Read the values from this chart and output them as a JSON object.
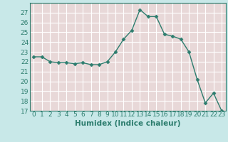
{
  "x": [
    0,
    1,
    2,
    3,
    4,
    5,
    6,
    7,
    8,
    9,
    10,
    11,
    12,
    13,
    14,
    15,
    16,
    17,
    18,
    19,
    20,
    21,
    22,
    23
  ],
  "y": [
    22.5,
    22.5,
    22.0,
    21.9,
    21.9,
    21.8,
    21.9,
    21.7,
    21.7,
    22.0,
    23.0,
    24.3,
    25.2,
    27.3,
    26.6,
    26.6,
    24.8,
    24.6,
    24.3,
    23.0,
    20.2,
    17.8,
    18.8,
    17.0
  ],
  "line_color": "#2d7d6e",
  "marker": "D",
  "markersize": 2.5,
  "linewidth": 1.0,
  "bg_color": "#c8e8e8",
  "plot_bg_color": "#e8d8d8",
  "grid_color": "#ffffff",
  "xlabel": "Humidex (Indice chaleur)",
  "ylim": [
    17,
    28
  ],
  "xlim": [
    -0.5,
    23.5
  ],
  "yticks": [
    17,
    18,
    19,
    20,
    21,
    22,
    23,
    24,
    25,
    26,
    27
  ],
  "xtick_labels": [
    "0",
    "1",
    "2",
    "3",
    "4",
    "5",
    "6",
    "7",
    "8",
    "9",
    "10",
    "11",
    "12",
    "13",
    "14",
    "15",
    "16",
    "17",
    "18",
    "19",
    "20",
    "21",
    "22",
    "23"
  ],
  "tick_fontsize": 6.5,
  "xlabel_fontsize": 7.5,
  "label_color": "#2d7d6e",
  "spine_color": "#2d7d6e"
}
